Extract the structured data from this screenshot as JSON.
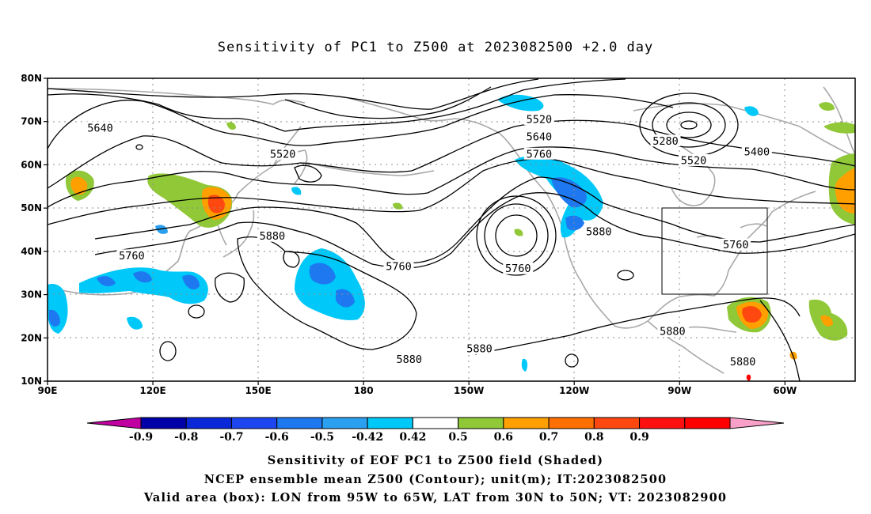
{
  "title": "Sensitivity of PC1 to Z500 at 2023082500 +2.0 day",
  "map": {
    "lat_labels": [
      "80N",
      "70N",
      "60N",
      "50N",
      "40N",
      "30N",
      "20N",
      "10N"
    ],
    "lon_labels": [
      "90E",
      "120E",
      "150E",
      "180",
      "150W",
      "120W",
      "90W",
      "60W"
    ],
    "contour_labels": [
      {
        "text": "5640",
        "lon": 105,
        "lat": 68.5
      },
      {
        "text": "5520",
        "lon": 157,
        "lat": 62.5
      },
      {
        "text": "5520",
        "lon": 230,
        "lat": 70.5
      },
      {
        "text": "5640",
        "lon": 230,
        "lat": 66.5
      },
      {
        "text": "5760",
        "lon": 230,
        "lat": 62.5
      },
      {
        "text": "5280",
        "lon": 266,
        "lat": 65.5
      },
      {
        "text": "5520",
        "lon": 274,
        "lat": 61.0
      },
      {
        "text": "5400",
        "lon": 292,
        "lat": 63.0
      },
      {
        "text": "5880",
        "lon": 154,
        "lat": 43.5
      },
      {
        "text": "5760",
        "lon": 114,
        "lat": 39.0
      },
      {
        "text": "5760",
        "lon": 190,
        "lat": 36.5
      },
      {
        "text": "5760",
        "lon": 224,
        "lat": 36.0
      },
      {
        "text": "5880",
        "lon": 247,
        "lat": 44.5
      },
      {
        "text": "5760",
        "lon": 286,
        "lat": 41.5
      },
      {
        "text": "5880",
        "lon": 193,
        "lat": 15.0
      },
      {
        "text": "5880",
        "lon": 213,
        "lat": 17.5
      },
      {
        "text": "5880",
        "lon": 268,
        "lat": 21.5
      },
      {
        "text": "5880",
        "lon": 288,
        "lat": 14.5
      }
    ]
  },
  "colorbar": {
    "labels": [
      "-0.9",
      "-0.8",
      "-0.7",
      "-0.6",
      "-0.5",
      "-0.42",
      "0.42",
      "0.5",
      "0.6",
      "0.7",
      "0.8",
      "0.9"
    ],
    "colors": [
      "#c000a0",
      "#0000a8",
      "#0a28d8",
      "#1e46f0",
      "#1e78f0",
      "#2ca0f0",
      "#00c8f8",
      "#ffffff",
      "#90c838",
      "#ffa000",
      "#ff7000",
      "#ff4810",
      "#ff1010",
      "#ff0000",
      "#f8a0c8"
    ]
  },
  "captions": {
    "line1": "Sensitivity of EOF PC1 to Z500 field (Shaded)",
    "line2": "NCEP ensemble mean Z500 (Contour); unit(m); IT:2023082500",
    "line3": "Valid area (box): LON from 95W to 65W, LAT from 30N to 50N; VT: 2023082900"
  }
}
